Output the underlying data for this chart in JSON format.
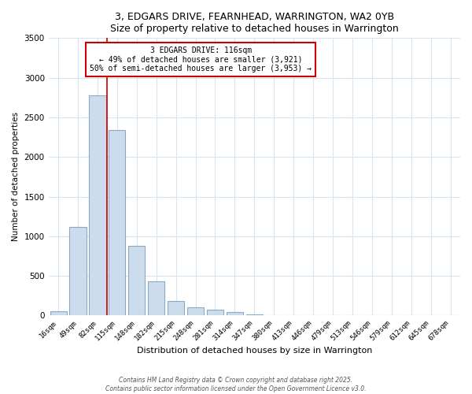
{
  "title1": "3, EDGARS DRIVE, FEARNHEAD, WARRINGTON, WA2 0YB",
  "title2": "Size of property relative to detached houses in Warrington",
  "xlabel": "Distribution of detached houses by size in Warrington",
  "ylabel": "Number of detached properties",
  "bar_color": "#ccdcec",
  "bar_edge_color": "#88aac8",
  "categories": [
    "16sqm",
    "49sqm",
    "82sqm",
    "115sqm",
    "148sqm",
    "182sqm",
    "215sqm",
    "248sqm",
    "281sqm",
    "314sqm",
    "347sqm",
    "380sqm",
    "413sqm",
    "446sqm",
    "479sqm",
    "513sqm",
    "546sqm",
    "579sqm",
    "612sqm",
    "645sqm",
    "678sqm"
  ],
  "values": [
    55,
    1120,
    2780,
    2340,
    880,
    430,
    185,
    100,
    70,
    40,
    10,
    5,
    2,
    2,
    1,
    1,
    0,
    0,
    0,
    0,
    0
  ],
  "vline_pos": 2.5,
  "vline_color": "#cc0000",
  "annotation_title": "3 EDGARS DRIVE: 116sqm",
  "annotation_line1": "← 49% of detached houses are smaller (3,921)",
  "annotation_line2": "50% of semi-detached houses are larger (3,953) →",
  "annotation_box_color": "#ffffff",
  "annotation_box_edge": "#cc0000",
  "ylim": [
    0,
    3500
  ],
  "yticks": [
    0,
    500,
    1000,
    1500,
    2000,
    2500,
    3000,
    3500
  ],
  "footer1": "Contains HM Land Registry data © Crown copyright and database right 2025.",
  "footer2": "Contains public sector information licensed under the Open Government Licence v3.0.",
  "background_color": "#ffffff",
  "grid_color": "#d8e4f0"
}
